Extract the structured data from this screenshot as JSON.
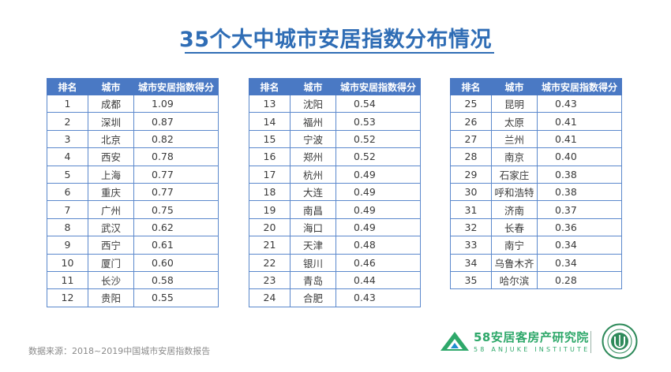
{
  "title": "35个大中城市安居指数分布情况",
  "headers": {
    "rank": "排名",
    "city": "城市",
    "score": "城市安居指数得分"
  },
  "tables": [
    {
      "rows": [
        [
          "1",
          "成都",
          "1.09"
        ],
        [
          "2",
          "深圳",
          "0.87"
        ],
        [
          "3",
          "北京",
          "0.82"
        ],
        [
          "4",
          "西安",
          "0.78"
        ],
        [
          "5",
          "上海",
          "0.77"
        ],
        [
          "6",
          "重庆",
          "0.77"
        ],
        [
          "7",
          "广州",
          "0.75"
        ],
        [
          "8",
          "武汉",
          "0.62"
        ],
        [
          "9",
          "西宁",
          "0.61"
        ],
        [
          "10",
          "厦门",
          "0.60"
        ],
        [
          "11",
          "长沙",
          "0.58"
        ],
        [
          "12",
          "贵阳",
          "0.55"
        ]
      ]
    },
    {
      "rows": [
        [
          "13",
          "沈阳",
          "0.54"
        ],
        [
          "14",
          "福州",
          "0.53"
        ],
        [
          "15",
          "宁波",
          "0.52"
        ],
        [
          "16",
          "郑州",
          "0.52"
        ],
        [
          "17",
          "杭州",
          "0.49"
        ],
        [
          "18",
          "大连",
          "0.49"
        ],
        [
          "19",
          "南昌",
          "0.49"
        ],
        [
          "20",
          "海口",
          "0.49"
        ],
        [
          "21",
          "天津",
          "0.48"
        ],
        [
          "22",
          "银川",
          "0.46"
        ],
        [
          "23",
          "青岛",
          "0.44"
        ],
        [
          "24",
          "合肥",
          "0.43"
        ]
      ]
    },
    {
      "rows": [
        [
          "25",
          "昆明",
          "0.43"
        ],
        [
          "26",
          "太原",
          "0.41"
        ],
        [
          "27",
          "兰州",
          "0.41"
        ],
        [
          "28",
          "南京",
          "0.40"
        ],
        [
          "29",
          "石家庄",
          "0.38"
        ],
        [
          "30",
          "呼和浩特",
          "0.38"
        ],
        [
          "31",
          "济南",
          "0.37"
        ],
        [
          "32",
          "长春",
          "0.36"
        ],
        [
          "33",
          "南宁",
          "0.34"
        ],
        [
          "34",
          "乌鲁木齐",
          "0.34"
        ],
        [
          "35",
          "哈尔滨",
          "0.28"
        ]
      ]
    }
  ],
  "source": "数据来源：2018~2019中国城市安居指数报告",
  "brand": {
    "cn": "58安居客房产研究院",
    "en": "58 ANJUKE INSTITUTE"
  },
  "colors": {
    "title": "#2f6db5",
    "header_bg": "#4a79c4",
    "brand_green": "#2ea86a"
  },
  "icons": {
    "logo": "anjuke-logo-icon",
    "seal": "university-seal-icon"
  }
}
